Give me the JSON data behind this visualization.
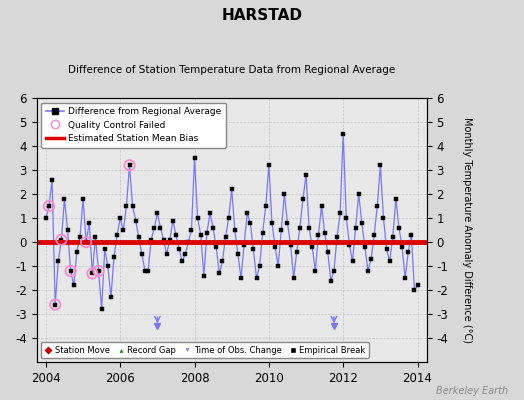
{
  "title": "HARSTAD",
  "subtitle": "Difference of Station Temperature Data from Regional Average",
  "ylabel": "Monthly Temperature Anomaly Difference (°C)",
  "xlim": [
    2003.75,
    2014.25
  ],
  "ylim": [
    -5,
    6
  ],
  "yticks": [
    -4,
    -3,
    -2,
    -1,
    0,
    1,
    2,
    3,
    4,
    5,
    6
  ],
  "xticks": [
    2004,
    2006,
    2008,
    2010,
    2012,
    2014
  ],
  "bias_line": 0.0,
  "background_color": "#d8d8d8",
  "plot_bg_color": "#e8e8e8",
  "line_color": "#7777ff",
  "marker_color": "#000000",
  "bias_color": "#dd0000",
  "qc_color": "#ff88cc",
  "watermark": "Berkeley Earth",
  "time_obs_changes": [
    2007.0,
    2011.75
  ],
  "qc_failed_x": [
    2004.083,
    2004.25,
    2004.417,
    2004.667,
    2005.083,
    2005.25,
    2005.417,
    2006.25
  ],
  "qc_failed_y": [
    1.5,
    -2.6,
    0.1,
    -1.2,
    0.0,
    -1.3,
    -1.2,
    3.2
  ],
  "data_x": [
    2004.0,
    2004.083,
    2004.167,
    2004.25,
    2004.333,
    2004.417,
    2004.5,
    2004.583,
    2004.667,
    2004.75,
    2004.833,
    2004.917,
    2005.0,
    2005.083,
    2005.167,
    2005.25,
    2005.333,
    2005.417,
    2005.5,
    2005.583,
    2005.667,
    2005.75,
    2005.833,
    2005.917,
    2006.0,
    2006.083,
    2006.167,
    2006.25,
    2006.333,
    2006.417,
    2006.5,
    2006.583,
    2006.667,
    2006.75,
    2006.833,
    2006.917,
    2007.0,
    2007.083,
    2007.167,
    2007.25,
    2007.333,
    2007.417,
    2007.5,
    2007.583,
    2007.667,
    2007.75,
    2007.833,
    2007.917,
    2008.0,
    2008.083,
    2008.167,
    2008.25,
    2008.333,
    2008.417,
    2008.5,
    2008.583,
    2008.667,
    2008.75,
    2008.833,
    2008.917,
    2009.0,
    2009.083,
    2009.167,
    2009.25,
    2009.333,
    2009.417,
    2009.5,
    2009.583,
    2009.667,
    2009.75,
    2009.833,
    2009.917,
    2010.0,
    2010.083,
    2010.167,
    2010.25,
    2010.333,
    2010.417,
    2010.5,
    2010.583,
    2010.667,
    2010.75,
    2010.833,
    2010.917,
    2011.0,
    2011.083,
    2011.167,
    2011.25,
    2011.333,
    2011.417,
    2011.5,
    2011.583,
    2011.667,
    2011.75,
    2011.833,
    2011.917,
    2012.0,
    2012.083,
    2012.167,
    2012.25,
    2012.333,
    2012.417,
    2012.5,
    2012.583,
    2012.667,
    2012.75,
    2012.833,
    2012.917,
    2013.0,
    2013.083,
    2013.167,
    2013.25,
    2013.333,
    2013.417,
    2013.5,
    2013.583,
    2013.667,
    2013.75,
    2013.833,
    2013.917,
    2014.0
  ],
  "data_y": [
    1.0,
    1.5,
    2.6,
    -2.6,
    -0.8,
    0.1,
    1.8,
    0.5,
    -1.2,
    -1.8,
    -0.4,
    0.2,
    1.8,
    0.0,
    0.8,
    -1.3,
    0.2,
    -1.2,
    -2.8,
    -0.3,
    -1.0,
    -2.3,
    -0.6,
    0.3,
    1.0,
    0.5,
    1.5,
    3.2,
    1.5,
    0.9,
    0.2,
    -0.5,
    -1.2,
    -1.2,
    0.1,
    0.6,
    1.2,
    0.6,
    0.1,
    -0.5,
    0.1,
    0.9,
    0.3,
    -0.3,
    -0.8,
    -0.5,
    0.0,
    0.5,
    3.5,
    1.0,
    0.3,
    -1.4,
    0.4,
    1.2,
    0.6,
    -0.2,
    -1.3,
    -0.8,
    0.2,
    1.0,
    2.2,
    0.5,
    -0.5,
    -1.5,
    -0.1,
    1.2,
    0.8,
    -0.3,
    -1.5,
    -1.0,
    0.4,
    1.5,
    3.2,
    0.8,
    -0.2,
    -1.0,
    0.5,
    2.0,
    0.8,
    -0.1,
    -1.5,
    -0.4,
    0.6,
    1.8,
    2.8,
    0.6,
    -0.2,
    -1.2,
    0.3,
    1.5,
    0.4,
    -0.4,
    -1.6,
    -1.2,
    0.2,
    1.2,
    4.5,
    1.0,
    -0.1,
    -0.8,
    0.6,
    2.0,
    0.8,
    -0.2,
    -1.2,
    -0.7,
    0.3,
    1.5,
    3.2,
    1.0,
    -0.3,
    -0.8,
    0.2,
    1.8,
    0.6,
    -0.2,
    -1.5,
    -0.4,
    0.3,
    -2.0,
    -1.8
  ]
}
